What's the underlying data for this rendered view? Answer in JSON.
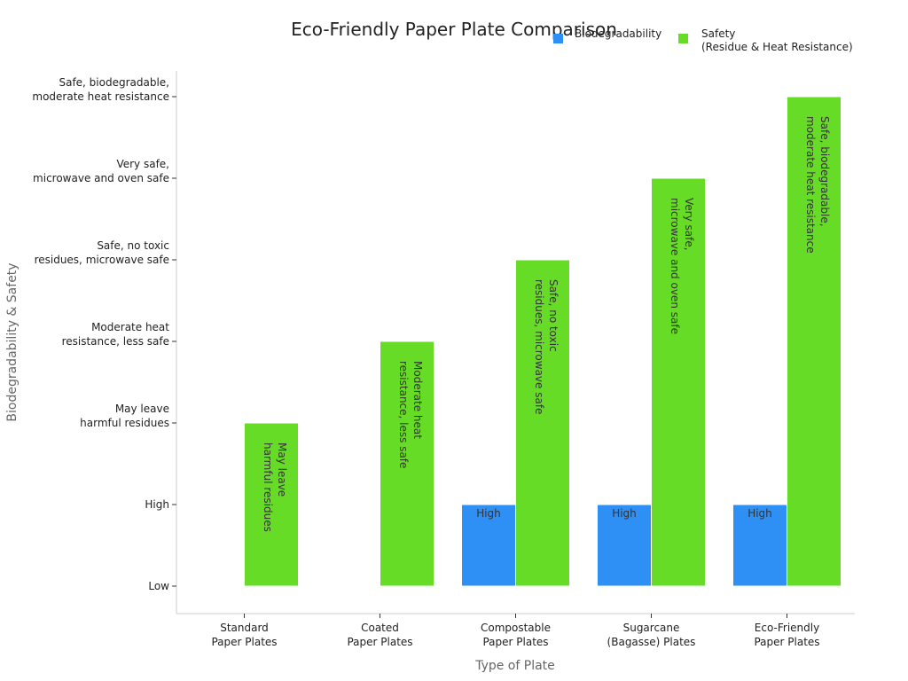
{
  "chart_data": {
    "type": "bar",
    "title": "Eco-Friendly Paper Plate Comparison",
    "xlabel": "Type of Plate",
    "ylabel": "Biodegradability & Safety",
    "categories": [
      [
        "Standard",
        "Paper Plates"
      ],
      [
        "Coated",
        "Paper Plates"
      ],
      [
        "Compostable",
        "Paper Plates"
      ],
      [
        "Sugarcane",
        "(Bagasse) Plates"
      ],
      [
        "Eco-Friendly",
        "Paper Plates"
      ]
    ],
    "y_ticks": [
      [
        "Low"
      ],
      [
        "High"
      ],
      [
        "May leave",
        "harmful residues"
      ],
      [
        "Moderate heat",
        "resistance, less safe"
      ],
      [
        "Safe, no toxic",
        "residues, microwave safe"
      ],
      [
        "Very safe,",
        "microwave and oven safe"
      ],
      [
        "Safe, biodegradable,",
        "moderate heat resistance"
      ]
    ],
    "ylim": [
      -0.3,
      6.3
    ],
    "grid": false,
    "legend_position": "top-right",
    "series": [
      {
        "name": "Biodegradability",
        "color": "#2e90f5",
        "values": [
          null,
          null,
          1,
          1,
          1
        ],
        "labels": [
          null,
          null,
          [
            "High"
          ],
          [
            "High"
          ],
          [
            "High"
          ]
        ]
      },
      {
        "name": [
          "Safety",
          "(Residue & Heat Resistance)"
        ],
        "color": "#66dc26",
        "values": [
          2,
          3,
          4,
          5,
          6
        ],
        "labels": [
          [
            "May leave",
            "harmful residues"
          ],
          [
            "Moderate heat",
            "resistance, less safe"
          ],
          [
            "Safe, no toxic",
            "residues, microwave safe"
          ],
          [
            "Very safe,",
            "microwave and oven safe"
          ],
          [
            "Safe, biodegradable,",
            "moderate heat resistance"
          ]
        ]
      }
    ]
  }
}
